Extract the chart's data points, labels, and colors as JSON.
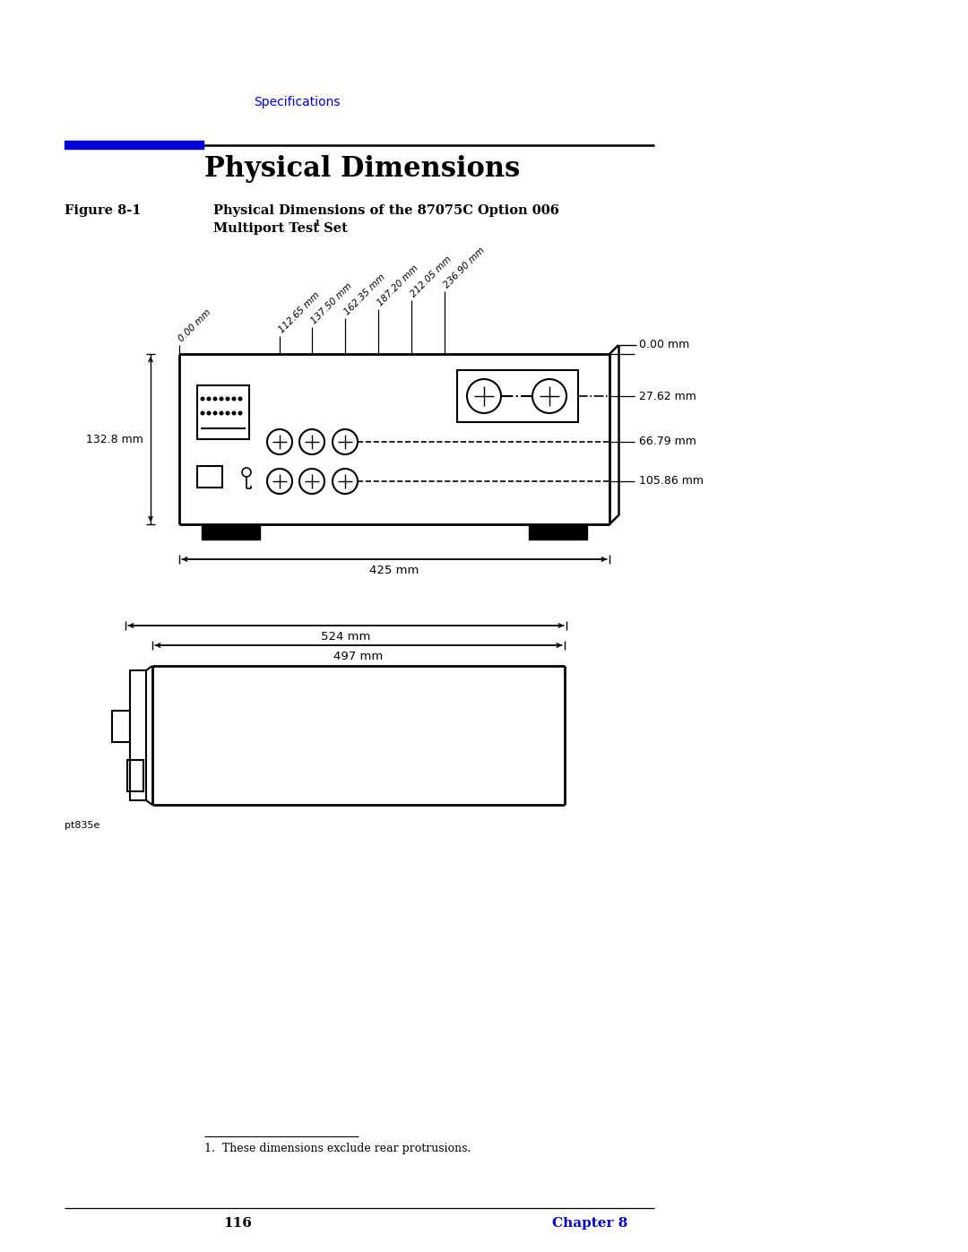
{
  "bg_color": "#ffffff",
  "page_width": 10.8,
  "page_height": 13.97,
  "header_text": "Specifications",
  "header_color": "#0000cc",
  "title_text": "Physical Dimensions",
  "section_label": "Figure 8-1",
  "figure_caption_line1": "Physical Dimensions of the 87075C Option 006",
  "figure_caption_line2": "Multiport Test Set",
  "figure_caption_superscript": "1",
  "angled_labels": [
    "0.00 mm",
    "112.65 mm",
    "137.50 mm",
    "162.35 mm",
    "187.20 mm",
    "212.05 mm",
    "236.90 mm"
  ],
  "dim_right_labels": [
    "0.00 mm",
    "27.62 mm",
    "66.79 mm",
    "105.86 mm"
  ],
  "dim_left": "132.8 mm",
  "dim_bottom_front": "425 mm",
  "dim_524": "524 mm",
  "dim_497": "497 mm",
  "footer_text": "pt835e",
  "footnote": "1.  These dimensions exclude rear protrusions.",
  "page_num": "116",
  "chapter": "Chapter 8",
  "chapter_color": "#0000cc"
}
